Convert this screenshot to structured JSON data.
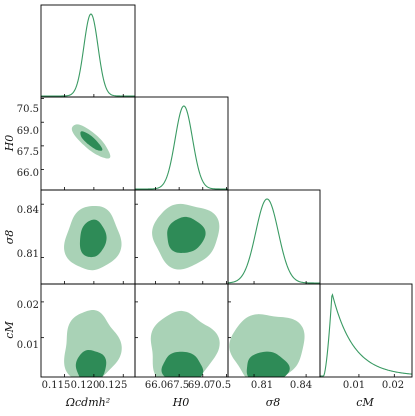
{
  "chart_data": {
    "type": "corner",
    "params": [
      {
        "key": "omega",
        "label": "Ωcdmh²",
        "range": [
          0.111,
          0.127
        ],
        "ticks": [
          "0.115",
          "0.120",
          "0.125"
        ],
        "tick_values": [
          0.115,
          0.12,
          0.125
        ]
      },
      {
        "key": "h0",
        "label": "H0",
        "range": [
          64.7,
          70.6
        ],
        "ticks": [
          "66.0",
          "67.5",
          "69.0",
          "70.5"
        ],
        "tick_values": [
          66.0,
          67.5,
          69.0,
          70.5
        ]
      },
      {
        "key": "sigma8",
        "label": "σ8",
        "range": [
          0.795,
          0.848
        ],
        "ticks": [
          "0.81",
          "0.84"
        ],
        "tick_values": [
          0.81,
          0.84
        ]
      },
      {
        "key": "cm",
        "label": "cM",
        "range": [
          -0.001,
          0.025
        ],
        "ticks": [
          "0.01",
          "0.02"
        ],
        "tick_values": [
          0.01,
          0.02
        ]
      }
    ],
    "y_ticks": {
      "h0": [
        "70.5",
        "69.0",
        "67.5",
        "66.0"
      ],
      "sigma8": [
        "0.84",
        "0.81"
      ],
      "cm": [
        "0.02",
        "0.01"
      ]
    },
    "marginals": [
      {
        "param": "omega",
        "shape": "gaussian",
        "mean": 0.1195,
        "sigma": 0.0012
      },
      {
        "param": "h0",
        "shape": "gaussian",
        "mean": 67.8,
        "sigma": 0.55
      },
      {
        "param": "sigma8",
        "shape": "gaussian",
        "mean": 0.8175,
        "sigma": 0.0065
      },
      {
        "param": "cm",
        "shape": "skewed",
        "peak": 0.0024,
        "tail_to": 0.022
      }
    ],
    "contours": [
      {
        "row": "h0",
        "col": "omega",
        "levels": [
          "95%",
          "68%"
        ]
      },
      {
        "row": "sigma8",
        "col": "omega",
        "levels": [
          "95%",
          "68%"
        ]
      },
      {
        "row": "sigma8",
        "col": "h0",
        "levels": [
          "95%",
          "68%"
        ]
      },
      {
        "row": "cm",
        "col": "omega",
        "levels": [
          "95%",
          "68%"
        ]
      },
      {
        "row": "cm",
        "col": "h0",
        "levels": [
          "95%",
          "68%"
        ]
      },
      {
        "row": "cm",
        "col": "sigma8",
        "levels": [
          "95%",
          "68%"
        ]
      }
    ],
    "colors": {
      "line": "#3a9a63",
      "fill_95": "#a9d2b6",
      "fill_68": "#2e8b57",
      "frame": "#000000"
    },
    "grid": false,
    "legend": "none"
  }
}
